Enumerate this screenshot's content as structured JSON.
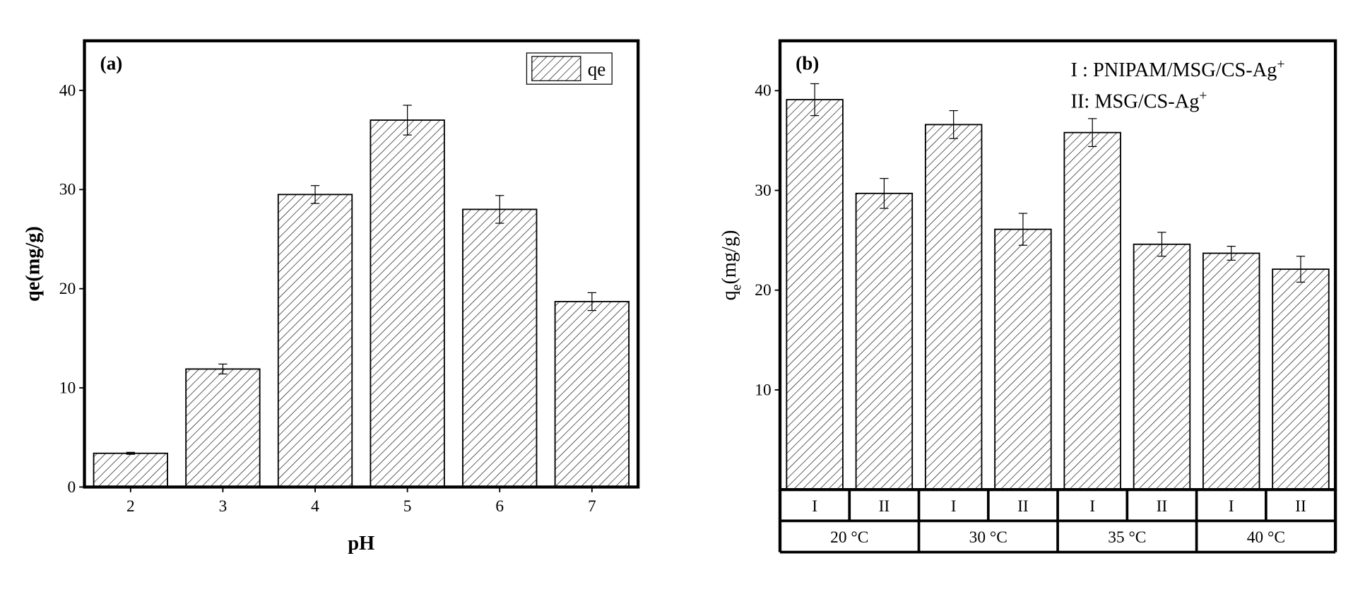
{
  "chart_data": [
    {
      "type": "bar",
      "panel_label": "(a)",
      "x_label": "pH",
      "y_label": "qe(mg/g)",
      "categories": [
        "2",
        "3",
        "4",
        "5",
        "6",
        "7"
      ],
      "series": [
        {
          "name": "qe",
          "color": "#000000",
          "values": [
            3.4,
            11.9,
            29.5,
            37.0,
            28.0,
            18.7
          ],
          "errors": [
            0.1,
            0.5,
            0.9,
            1.5,
            1.4,
            0.9
          ]
        }
      ],
      "ylim": [
        0,
        45
      ],
      "yticks": [
        0,
        10,
        20,
        30,
        40
      ],
      "legend": "upper right"
    },
    {
      "type": "bar",
      "panel_label": "(b)",
      "y_label": {
        "text": "q",
        "subscript": "e",
        "suffix": "(mg/g)"
      },
      "annotations": [
        {
          "text": "I : PNIPAM/MSG/CS-Ag",
          "superscript": "+"
        },
        {
          "text": "II: MSG/CS-Ag",
          "superscript": "+"
        }
      ],
      "categories": [
        "I",
        "II",
        "I",
        "II",
        "I",
        "II",
        "I",
        "II"
      ],
      "groups": [
        "20 °C",
        "30 °C",
        "35 °C",
        "40 °C"
      ],
      "series": [
        {
          "color": "#000000",
          "values": [
            39.1,
            29.7,
            36.6,
            26.1,
            35.8,
            24.6,
            23.7,
            22.1
          ],
          "errors": [
            1.6,
            1.5,
            1.4,
            1.6,
            1.4,
            1.2,
            0.7,
            1.3
          ]
        }
      ],
      "ylim": [
        0,
        45
      ],
      "yticks": [
        10,
        20,
        30,
        40
      ]
    }
  ]
}
